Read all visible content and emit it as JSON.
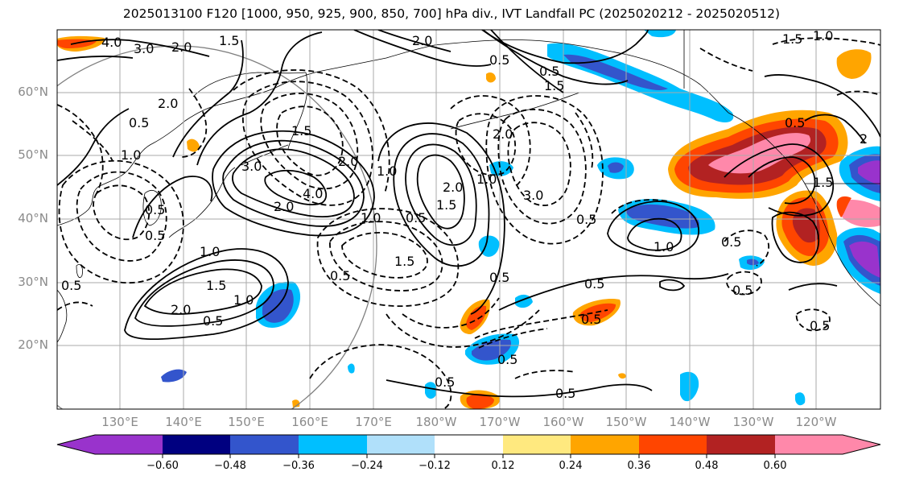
{
  "title": "2025013100 F120 [1000, 950, 925, 900, 850, 700] hPa div., IVT Landfall PC (2025020212 - 2025020512)",
  "map": {
    "lat_labels": [
      "60°N",
      "50°N",
      "40°N",
      "30°N",
      "20°N"
    ],
    "lon_labels": [
      "130°E",
      "140°E",
      "150°E",
      "160°E",
      "170°E",
      "180°W",
      "170°W",
      "160°W",
      "150°W",
      "140°W",
      "130°W",
      "120°W"
    ],
    "contour_labels": [
      "4.0",
      "3.0",
      "2.0",
      "1.5",
      "2.0",
      "2.0",
      "0.5",
      "1.0",
      "0.5",
      "1.5",
      "4.0",
      "3.0",
      "2.0",
      "1.0",
      "0.5",
      "1.0",
      "1.5",
      "2.0",
      "1.5",
      "1.0",
      "0.5",
      "0.5",
      "1.0",
      "0.5",
      "2.0",
      "1.5",
      "2.0",
      "1.0",
      "0.5",
      "2.0",
      "3.0",
      "0.5",
      "0.5",
      "1.0",
      "0.5",
      "0.5",
      "0.5",
      "0.5",
      "0.5",
      "2",
      "1.5",
      "0.5",
      "0.5",
      "0.5",
      "1.5",
      "1.0",
      "0.5",
      "1.5",
      "0.5",
      "0.5"
    ]
  },
  "colorbar": {
    "ticks": [
      "−0.60",
      "−0.48",
      "−0.36",
      "−0.24",
      "−0.12",
      "0.12",
      "0.24",
      "0.36",
      "0.48",
      "0.60"
    ],
    "colors": [
      "#9933cc",
      "#000080",
      "#3355cc",
      "#00bfff",
      "#b0e0fa",
      "#ffffff",
      "#ffe97f",
      "#ffa500",
      "#ff4500",
      "#b22222",
      "#ff88aa"
    ]
  },
  "colors": {
    "neg_strong": "#9933cc",
    "neg_dark": "#000080",
    "neg_mid": "#3355cc",
    "neg_light": "#00bfff",
    "pos_light": "#ffe97f",
    "pos_mid": "#ffa500",
    "pos_strong": "#ff4500",
    "pos_dark": "#b22222",
    "pos_max": "#ff88aa"
  }
}
